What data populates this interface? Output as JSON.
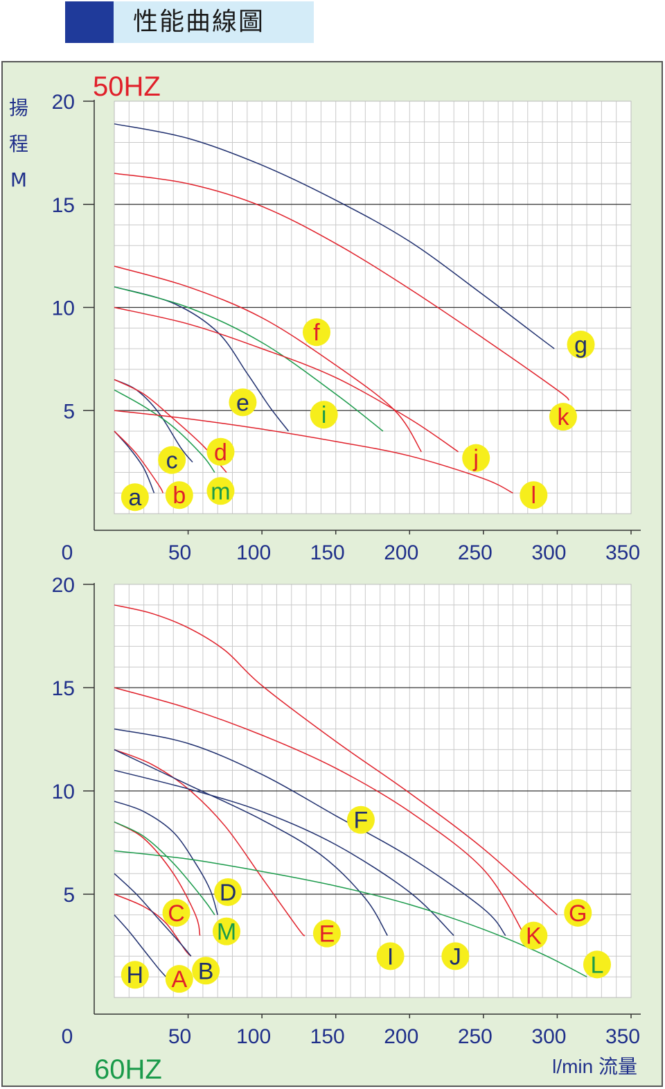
{
  "page_title": "性能曲線圖",
  "colors": {
    "navy": "#1f2f6e",
    "red": "#e0202a",
    "green": "#1a9a4a",
    "label_yellow": "#f6ee1c",
    "panel_bg": "#e3efd9",
    "grid_bg": "#ffffff",
    "axis_text": "#1f2f8a"
  },
  "chart_data": [
    {
      "type": "line",
      "title": "50HZ",
      "ylabel": "揚程 M",
      "xlabel": "",
      "origin_label": "0",
      "xlim": [
        0,
        350
      ],
      "ylim": [
        0,
        20
      ],
      "x_ticks": [
        "50",
        "100",
        "150",
        "200",
        "250",
        "300",
        "350"
      ],
      "y_ticks": [
        "5",
        "10",
        "15",
        "20"
      ],
      "grid": true,
      "series": [
        {
          "label": "a",
          "color": "navy",
          "x": [
            0,
            10,
            20,
            27
          ],
          "y": [
            4.0,
            3.2,
            2.2,
            1.0
          ],
          "label_pos": [
            14,
            0.8
          ],
          "label_color": "navy"
        },
        {
          "label": "b",
          "color": "red",
          "x": [
            0,
            15,
            30,
            33
          ],
          "y": [
            4.0,
            2.9,
            1.4,
            1.0
          ],
          "label_pos": [
            44,
            0.9
          ],
          "label_color": "red"
        },
        {
          "label": "c",
          "color": "navy",
          "x": [
            0,
            15,
            30,
            45,
            53
          ],
          "y": [
            6.5,
            6.0,
            4.9,
            3.2,
            2.5
          ],
          "label_pos": [
            39,
            2.6
          ],
          "label_color": "navy"
        },
        {
          "label": "d",
          "color": "red",
          "x": [
            0,
            20,
            40,
            60,
            76
          ],
          "y": [
            6.5,
            5.8,
            4.6,
            3.3,
            2.0
          ],
          "label_pos": [
            72,
            3.0
          ],
          "label_color": "red"
        },
        {
          "label": "m",
          "color": "green",
          "x": [
            0,
            20,
            40,
            60,
            68
          ],
          "y": [
            6.0,
            5.2,
            4.2,
            2.8,
            2.0
          ],
          "label_pos": [
            72,
            1.1
          ],
          "label_color": "green"
        },
        {
          "label": "e",
          "color": "navy",
          "x": [
            0,
            40,
            70,
            90,
            105,
            118
          ],
          "y": [
            11.0,
            10.2,
            8.8,
            6.8,
            5.2,
            4.0
          ],
          "label_pos": [
            87,
            5.4
          ],
          "label_color": "navy"
        },
        {
          "label": "i",
          "color": "green",
          "x": [
            0,
            50,
            100,
            150,
            182
          ],
          "y": [
            11.0,
            10.0,
            8.3,
            5.8,
            4.0
          ],
          "label_pos": [
            142,
            4.8
          ],
          "label_color": "green"
        },
        {
          "label": "f",
          "color": "red",
          "x": [
            0,
            50,
            100,
            150,
            190,
            208
          ],
          "y": [
            12.0,
            11.0,
            9.5,
            7.2,
            5.0,
            3.0
          ],
          "label_pos": [
            137,
            8.8
          ],
          "label_color": "red"
        },
        {
          "label": "j",
          "color": "red",
          "x": [
            0,
            50,
            100,
            150,
            200,
            233
          ],
          "y": [
            10.0,
            9.2,
            8.0,
            6.6,
            4.6,
            3.0
          ],
          "label_pos": [
            245,
            2.7
          ],
          "label_color": "red"
        },
        {
          "label": "l",
          "color": "red",
          "x": [
            0,
            50,
            100,
            150,
            200,
            250,
            270
          ],
          "y": [
            5.0,
            4.6,
            4.1,
            3.5,
            2.8,
            1.7,
            1.0
          ],
          "label_pos": [
            284,
            0.9
          ],
          "label_color": "red"
        },
        {
          "label": "k",
          "color": "red",
          "x": [
            0,
            50,
            100,
            150,
            200,
            250,
            300,
            308
          ],
          "y": [
            16.5,
            16.0,
            14.9,
            13.1,
            10.9,
            8.5,
            6.0,
            5.5
          ],
          "label_pos": [
            304,
            4.7
          ],
          "label_color": "red"
        },
        {
          "label": "g",
          "color": "navy",
          "x": [
            0,
            50,
            100,
            150,
            200,
            250,
            285,
            298
          ],
          "y": [
            18.9,
            18.2,
            16.9,
            15.2,
            13.2,
            10.6,
            8.7,
            8.0
          ],
          "label_pos": [
            316,
            8.2
          ],
          "label_color": "navy"
        }
      ]
    },
    {
      "type": "line",
      "title": "60HZ",
      "ylabel": "",
      "xlabel": "l/min 流量",
      "origin_label": "0",
      "xlim": [
        0,
        350
      ],
      "ylim": [
        0,
        20
      ],
      "x_ticks": [
        "50",
        "100",
        "150",
        "200",
        "250",
        "300",
        "350"
      ],
      "y_ticks": [
        "5",
        "10",
        "15",
        "20"
      ],
      "grid": true,
      "series": [
        {
          "label": "H",
          "color": "navy",
          "x": [
            0,
            10,
            20,
            30,
            35
          ],
          "y": [
            4.0,
            3.2,
            2.3,
            1.4,
            1.0
          ],
          "label_pos": [
            14,
            1.1
          ],
          "label_color": "navy"
        },
        {
          "label": "A",
          "color": "red",
          "x": [
            0,
            20,
            35,
            48,
            52
          ],
          "y": [
            5.0,
            4.4,
            3.6,
            2.3,
            2.0
          ],
          "label_pos": [
            44,
            0.9
          ],
          "label_color": "red"
        },
        {
          "label": "B",
          "color": "navy",
          "x": [
            0,
            15,
            30,
            45,
            52
          ],
          "y": [
            6.0,
            5.0,
            3.8,
            2.6,
            2.0
          ],
          "label_pos": [
            62,
            1.3
          ],
          "label_color": "navy"
        },
        {
          "label": "C",
          "color": "red",
          "x": [
            0,
            20,
            40,
            55,
            58
          ],
          "y": [
            8.5,
            7.7,
            6.0,
            4.0,
            3.0
          ],
          "label_pos": [
            42,
            4.1
          ],
          "label_color": "red"
        },
        {
          "label": "M",
          "color": "green",
          "x": [
            0,
            20,
            40,
            60,
            68
          ],
          "y": [
            8.5,
            7.8,
            6.5,
            4.8,
            4.0
          ],
          "label_pos": [
            76,
            3.2
          ],
          "label_color": "green"
        },
        {
          "label": "D",
          "color": "navy",
          "x": [
            0,
            20,
            40,
            55,
            65,
            70
          ],
          "y": [
            9.5,
            9.0,
            8.0,
            6.5,
            5.2,
            4.0
          ],
          "label_pos": [
            77,
            5.1
          ],
          "label_color": "navy"
        },
        {
          "label": "E",
          "color": "red",
          "x": [
            0,
            25,
            50,
            75,
            100,
            125,
            129
          ],
          "y": [
            12.0,
            11.3,
            10.1,
            8.3,
            5.8,
            3.3,
            3.0
          ],
          "label_pos": [
            144,
            3.1
          ],
          "label_color": "red"
        },
        {
          "label": "I",
          "color": "navy",
          "x": [
            0,
            50,
            100,
            140,
            170,
            185
          ],
          "y": [
            12.0,
            10.3,
            8.6,
            6.9,
            4.8,
            3.0
          ],
          "label_pos": [
            187,
            2.0
          ],
          "label_color": "navy"
        },
        {
          "label": "J",
          "color": "navy",
          "x": [
            0,
            50,
            100,
            150,
            200,
            230
          ],
          "y": [
            11.0,
            10.1,
            9.0,
            7.4,
            5.1,
            3.0
          ],
          "label_pos": [
            231,
            2.0
          ],
          "label_color": "navy"
        },
        {
          "label": "L",
          "color": "green",
          "x": [
            0,
            50,
            100,
            150,
            200,
            250,
            290,
            320
          ],
          "y": [
            7.1,
            6.7,
            6.1,
            5.4,
            4.5,
            3.3,
            2.1,
            1.0
          ],
          "label_pos": [
            327,
            1.6
          ],
          "label_color": "green"
        },
        {
          "label": "F",
          "color": "navy",
          "x": [
            0,
            50,
            100,
            150,
            200,
            250,
            265
          ],
          "y": [
            13.0,
            12.3,
            10.8,
            8.8,
            6.8,
            4.3,
            3.0
          ],
          "label_pos": [
            167,
            8.6
          ],
          "label_color": "navy"
        },
        {
          "label": "K",
          "color": "red",
          "x": [
            0,
            50,
            100,
            150,
            200,
            250,
            278
          ],
          "y": [
            15.0,
            14.0,
            12.7,
            11.1,
            9.0,
            6.2,
            3.0
          ],
          "label_pos": [
            284,
            3.0
          ],
          "label_color": "red"
        },
        {
          "label": "G",
          "color": "red",
          "x": [
            0,
            25,
            50,
            75,
            100,
            150,
            200,
            250,
            300
          ],
          "y": [
            19.0,
            18.6,
            17.9,
            16.8,
            15.1,
            12.4,
            9.9,
            7.2,
            4.0
          ],
          "label_pos": [
            314,
            4.1
          ],
          "label_color": "red"
        }
      ]
    }
  ]
}
